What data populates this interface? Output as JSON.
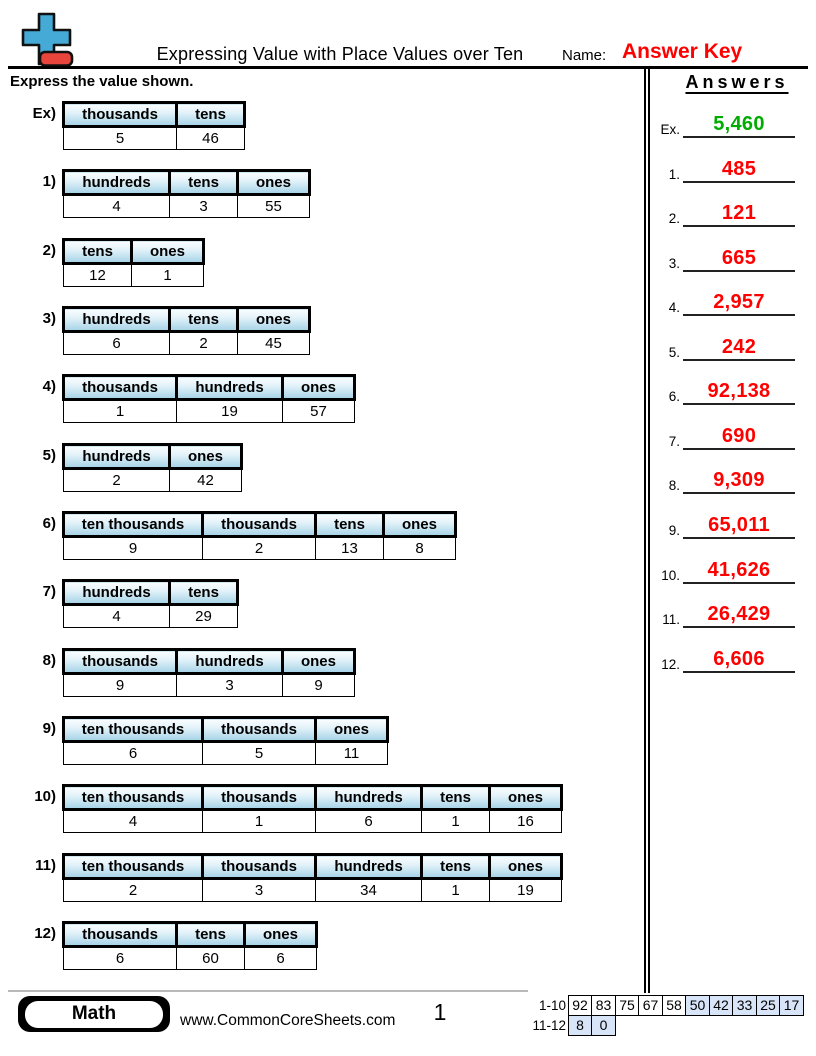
{
  "header": {
    "title": "Expressing Value with Place Values over Ten",
    "name_label": "Name:",
    "answer_key_label": "Answer Key",
    "instructions": "Express the value shown."
  },
  "problems": [
    {
      "label": "Ex)",
      "columns": [
        "thousands",
        "tens"
      ],
      "values": [
        "5",
        "46"
      ]
    },
    {
      "label": "1)",
      "columns": [
        "hundreds",
        "tens",
        "ones"
      ],
      "values": [
        "4",
        "3",
        "55"
      ]
    },
    {
      "label": "2)",
      "columns": [
        "tens",
        "ones"
      ],
      "values": [
        "12",
        "1"
      ]
    },
    {
      "label": "3)",
      "columns": [
        "hundreds",
        "tens",
        "ones"
      ],
      "values": [
        "6",
        "2",
        "45"
      ]
    },
    {
      "label": "4)",
      "columns": [
        "thousands",
        "hundreds",
        "ones"
      ],
      "values": [
        "1",
        "19",
        "57"
      ]
    },
    {
      "label": "5)",
      "columns": [
        "hundreds",
        "ones"
      ],
      "values": [
        "2",
        "42"
      ]
    },
    {
      "label": "6)",
      "columns": [
        "ten thousands",
        "thousands",
        "tens",
        "ones"
      ],
      "values": [
        "9",
        "2",
        "13",
        "8"
      ]
    },
    {
      "label": "7)",
      "columns": [
        "hundreds",
        "tens"
      ],
      "values": [
        "4",
        "29"
      ]
    },
    {
      "label": "8)",
      "columns": [
        "thousands",
        "hundreds",
        "ones"
      ],
      "values": [
        "9",
        "3",
        "9"
      ]
    },
    {
      "label": "9)",
      "columns": [
        "ten thousands",
        "thousands",
        "ones"
      ],
      "values": [
        "6",
        "5",
        "11"
      ]
    },
    {
      "label": "10)",
      "columns": [
        "ten thousands",
        "thousands",
        "hundreds",
        "tens",
        "ones"
      ],
      "values": [
        "4",
        "1",
        "6",
        "1",
        "16"
      ]
    },
    {
      "label": "11)",
      "columns": [
        "ten thousands",
        "thousands",
        "hundreds",
        "tens",
        "ones"
      ],
      "values": [
        "2",
        "3",
        "34",
        "1",
        "19"
      ]
    },
    {
      "label": "12)",
      "columns": [
        "thousands",
        "tens",
        "ones"
      ],
      "values": [
        "6",
        "60",
        "6"
      ]
    }
  ],
  "answers_panel": {
    "title": "Answers",
    "items": [
      {
        "label": "Ex.",
        "value": "5,460",
        "highlight": "green"
      },
      {
        "label": "1.",
        "value": "485",
        "highlight": "red"
      },
      {
        "label": "2.",
        "value": "121",
        "highlight": "red"
      },
      {
        "label": "3.",
        "value": "665",
        "highlight": "red"
      },
      {
        "label": "4.",
        "value": "2,957",
        "highlight": "red"
      },
      {
        "label": "5.",
        "value": "242",
        "highlight": "red"
      },
      {
        "label": "6.",
        "value": "92,138",
        "highlight": "red"
      },
      {
        "label": "7.",
        "value": "690",
        "highlight": "red"
      },
      {
        "label": "8.",
        "value": "9,309",
        "highlight": "red"
      },
      {
        "label": "9.",
        "value": "65,011",
        "highlight": "red"
      },
      {
        "label": "10.",
        "value": "41,626",
        "highlight": "red"
      },
      {
        "label": "11.",
        "value": "26,429",
        "highlight": "red"
      },
      {
        "label": "12.",
        "value": "6,606",
        "highlight": "red"
      }
    ]
  },
  "footer": {
    "subject": "Math",
    "website": "www.CommonCoreSheets.com",
    "page_number": "1",
    "score_rows": [
      {
        "label": "1-10",
        "cells": [
          {
            "value": "92",
            "shaded": false
          },
          {
            "value": "83",
            "shaded": false
          },
          {
            "value": "75",
            "shaded": false
          },
          {
            "value": "67",
            "shaded": false
          },
          {
            "value": "58",
            "shaded": false
          },
          {
            "value": "50",
            "shaded": true
          },
          {
            "value": "42",
            "shaded": true
          },
          {
            "value": "33",
            "shaded": true
          },
          {
            "value": "25",
            "shaded": true
          },
          {
            "value": "17",
            "shaded": true
          }
        ]
      },
      {
        "label": "11-12",
        "cells": [
          {
            "value": "8",
            "shaded": true
          },
          {
            "value": "0",
            "shaded": true
          }
        ]
      }
    ]
  },
  "colors": {
    "answer_red": "#ff0000",
    "example_green": "#00ac00",
    "header_cell_top": "#fafdff",
    "header_cell_bottom": "#a6d3e7",
    "score_shade": "#d8e4f8",
    "logo_blue": "#45abd6",
    "logo_red": "#e8453c"
  }
}
